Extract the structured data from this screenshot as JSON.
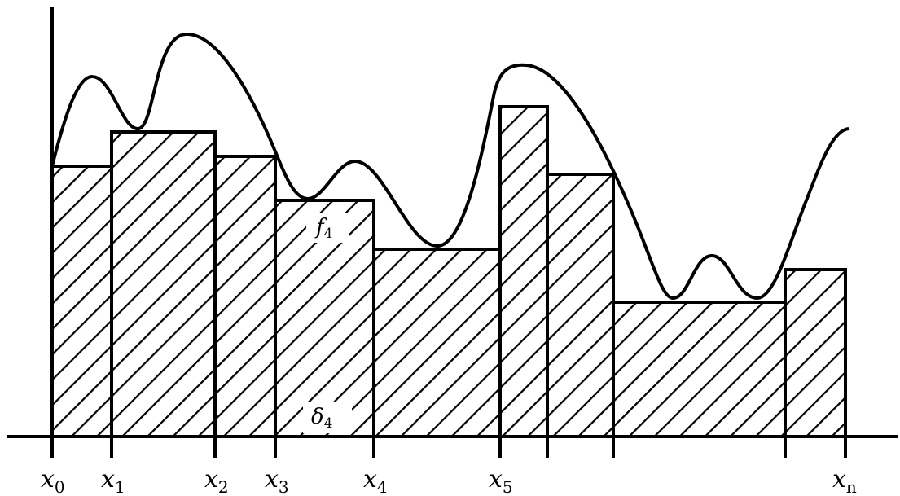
{
  "x_labels": [
    {
      "base": "x",
      "sub": "0"
    },
    {
      "base": "x",
      "sub": "1"
    },
    {
      "base": "x",
      "sub": "2"
    },
    {
      "base": "x",
      "sub": "3"
    },
    {
      "base": "x",
      "sub": "4"
    },
    {
      "base": "x",
      "sub": "5"
    },
    {
      "base": "x",
      "sub": "n"
    }
  ],
  "f_label": {
    "base": "f",
    "sub": "4"
  },
  "delta_label": {
    "base": "δ",
    "sub": "4"
  },
  "stroke_color": "#000000"
}
